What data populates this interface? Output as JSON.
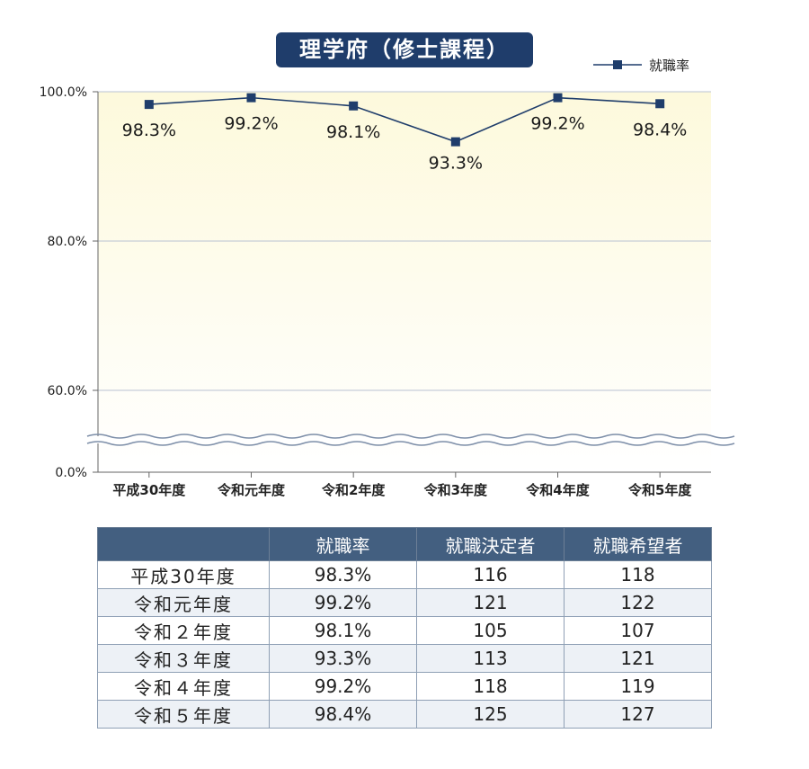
{
  "chart_data": {
    "type": "line",
    "title": "理学府（修士課程）",
    "categories": [
      "平成30年度",
      "令和元年度",
      "令和2年度",
      "令和3年度",
      "令和4年度",
      "令和5年度"
    ],
    "series": [
      {
        "name": "就職率",
        "values": [
          98.3,
          99.2,
          98.1,
          93.3,
          99.2,
          98.4
        ],
        "labels": [
          "98.3%",
          "99.2%",
          "98.1%",
          "93.3%",
          "99.2%",
          "98.4%"
        ]
      }
    ],
    "y_ticks": [
      "100.0%",
      "80.0%",
      "60.0%",
      "0.0%"
    ],
    "ylim": [
      0,
      100
    ],
    "axis_break": true,
    "grid": true,
    "legend": "top-right",
    "colors": {
      "line": "#1f3d6b",
      "plot_bg_top": "#fdf9dc",
      "plot_bg_bottom": "#ffffff",
      "grid": "#b9c3d3"
    }
  },
  "table": {
    "headers": [
      "",
      "就職率",
      "就職決定者",
      "就職希望者"
    ],
    "rows": [
      [
        "平成30年度",
        "98.3%",
        "116",
        "118"
      ],
      [
        "令和元年度",
        "99.2%",
        "121",
        "122"
      ],
      [
        "令和２年度",
        "98.1%",
        "105",
        "107"
      ],
      [
        "令和３年度",
        "93.3%",
        "113",
        "121"
      ],
      [
        "令和４年度",
        "99.2%",
        "118",
        "119"
      ],
      [
        "令和５年度",
        "98.4%",
        "125",
        "127"
      ]
    ]
  }
}
